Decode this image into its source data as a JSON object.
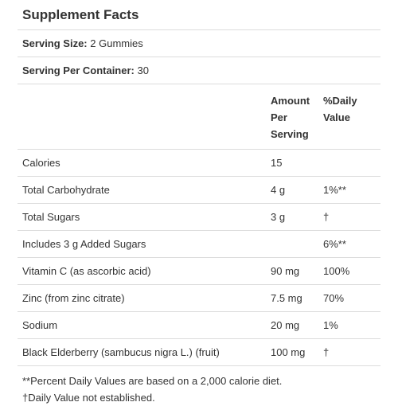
{
  "title": "Supplement Facts",
  "serving_size": {
    "label": "Serving Size:",
    "value": "2 Gummies"
  },
  "servings_per_container": {
    "label": "Serving Per Container:",
    "value": "30"
  },
  "header": {
    "amount_line1": "Amount",
    "amount_line2": "Per",
    "amount_line3": "Serving",
    "dv_line1": "%Daily",
    "dv_line2": "Value"
  },
  "nutrients": [
    {
      "name": "Calories",
      "amount": "15",
      "dv": ""
    },
    {
      "name": "Total Carbohydrate",
      "amount": "4 g",
      "dv": "1%**"
    },
    {
      "name": "Total Sugars",
      "amount": "3 g",
      "dv": "†"
    },
    {
      "name": "Includes 3 g Added Sugars",
      "amount": "",
      "dv": "6%**"
    },
    {
      "name": "Vitamin C (as ascorbic acid)",
      "amount": "90 mg",
      "dv": "100%"
    },
    {
      "name": "Zinc (from zinc citrate)",
      "amount": "7.5 mg",
      "dv": "70%"
    },
    {
      "name": "Sodium",
      "amount": "20 mg",
      "dv": "1%"
    },
    {
      "name": "Black Elderberry (sambucus nigra L.) (fruit)",
      "amount": "100 mg",
      "dv": "†"
    }
  ],
  "footnotes": [
    "**Percent Daily Values are based on a 2,000 calorie diet.",
    "†Daily Value not established."
  ]
}
